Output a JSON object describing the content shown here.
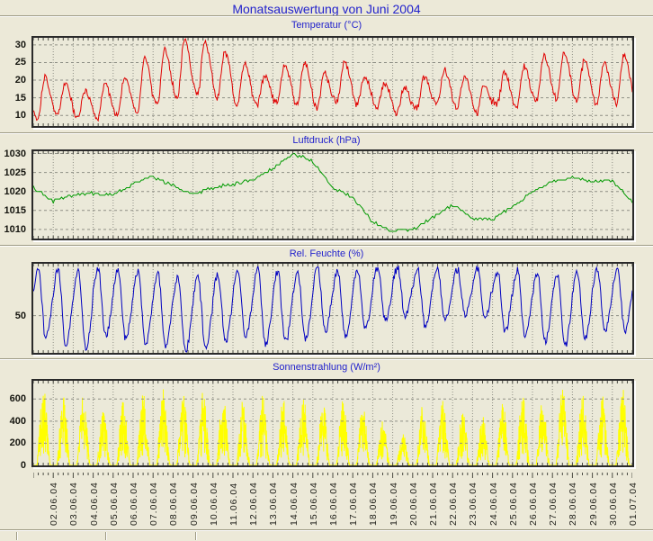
{
  "page": {
    "title": "Monatsauswertung von Juni 2004"
  },
  "colors": {
    "background": "#ece9d8",
    "plot_background": "#ebe9d9",
    "title_blue": "#2222cc",
    "grid_gray": "#8f9086",
    "tick_dark": "#4a4a42",
    "border_dark": "#2a2a2a",
    "temperature_line": "#e00000",
    "pressure_line": "#009a00",
    "humidity_line": "#0000c0",
    "solar_line": "#ffff00"
  },
  "x_axis": {
    "labels": [
      "02.06.04",
      "03.06.04",
      "04.06.04",
      "05.06.04",
      "06.06.04",
      "07.06.04",
      "08.06.04",
      "09.06.04",
      "10.06.04",
      "11.06.04",
      "12.06.04",
      "13.06.04",
      "14.06.04",
      "15.06.04",
      "16.06.04",
      "17.06.04",
      "18.06.04",
      "19.06.04",
      "20.06.04",
      "21.06.04",
      "22.06.04",
      "23.06.04",
      "24.06.04",
      "25.06.04",
      "26.06.04",
      "27.06.04",
      "28.06.04",
      "29.06.04",
      "30.06.04",
      "01.07.04"
    ],
    "days": 30
  },
  "chart_data": [
    {
      "type": "line",
      "title": "Temperatur (°C)",
      "color_key": "temperature_line",
      "ylim": [
        7,
        32
      ],
      "yticks": [
        10,
        15,
        20,
        25,
        30
      ],
      "x_range": "01.06.2004 - 01.07.2004",
      "grid": true,
      "daily_min": [
        9,
        10,
        9,
        9,
        10,
        11,
        13,
        15,
        16,
        15,
        13,
        13,
        14,
        13,
        12,
        14,
        13,
        12,
        11,
        12,
        13,
        12,
        11,
        13,
        12,
        14,
        15,
        14,
        13,
        14
      ],
      "daily_max": [
        21,
        19,
        17,
        19,
        21,
        26,
        29,
        32,
        31,
        28,
        25,
        21,
        24,
        25,
        22,
        25,
        21,
        19,
        18,
        21,
        23,
        21,
        19,
        22,
        24,
        27,
        28,
        26,
        25,
        27
      ]
    },
    {
      "type": "line",
      "title": "Luftdruck (hPa)",
      "color_key": "pressure_line",
      "ylim": [
        1007.6,
        1030.6
      ],
      "yticks": [
        1010,
        1015,
        1020,
        1025,
        1030
      ],
      "x_range": "01.06.2004 - 01.07.2004",
      "grid": true,
      "daily_values": [
        1021,
        1017.5,
        1019,
        1019.5,
        1019,
        1022,
        1024,
        1021.5,
        1019,
        1021,
        1022,
        1023,
        1026,
        1030,
        1028,
        1021,
        1018.5,
        1012,
        1009.5,
        1010,
        1013,
        1016.5,
        1013,
        1012.5,
        1016,
        1020,
        1022.5,
        1023.5,
        1022.5,
        1023,
        1017
      ]
    },
    {
      "type": "line",
      "title": "Rel. Feuchte (%)",
      "color_key": "humidity_line",
      "ylim": [
        13.8,
        100.5
      ],
      "yticks": [
        50
      ],
      "x_range": "01.06.2004 - 01.07.2004",
      "grid": true,
      "daily_max": [
        95,
        96,
        94,
        95,
        95,
        93,
        90,
        88,
        87,
        90,
        92,
        95,
        93,
        92,
        96,
        94,
        95,
        96,
        97,
        95,
        94,
        95,
        96,
        95,
        94,
        92,
        90,
        92,
        95,
        96
      ],
      "daily_min": [
        30,
        22,
        18,
        30,
        28,
        22,
        20,
        16,
        20,
        25,
        30,
        22,
        25,
        28,
        35,
        30,
        38,
        45,
        50,
        40,
        45,
        52,
        48,
        35,
        30,
        25,
        22,
        28,
        35,
        35
      ]
    },
    {
      "type": "line",
      "title": "Sonnenstrahlung (W/m²)",
      "color_key": "solar_line",
      "ylim": [
        0,
        765
      ],
      "yticks": [
        0,
        200,
        400,
        600
      ],
      "x_range": "01.06.2004 - 01.07.2004",
      "grid": true,
      "grid_on_top": true,
      "daily_peak": [
        750,
        620,
        650,
        520,
        600,
        700,
        690,
        650,
        700,
        660,
        600,
        650,
        610,
        650,
        600,
        590,
        550,
        420,
        290,
        550,
        600,
        500,
        450,
        600,
        650,
        610,
        700,
        660,
        650,
        700
      ]
    }
  ]
}
